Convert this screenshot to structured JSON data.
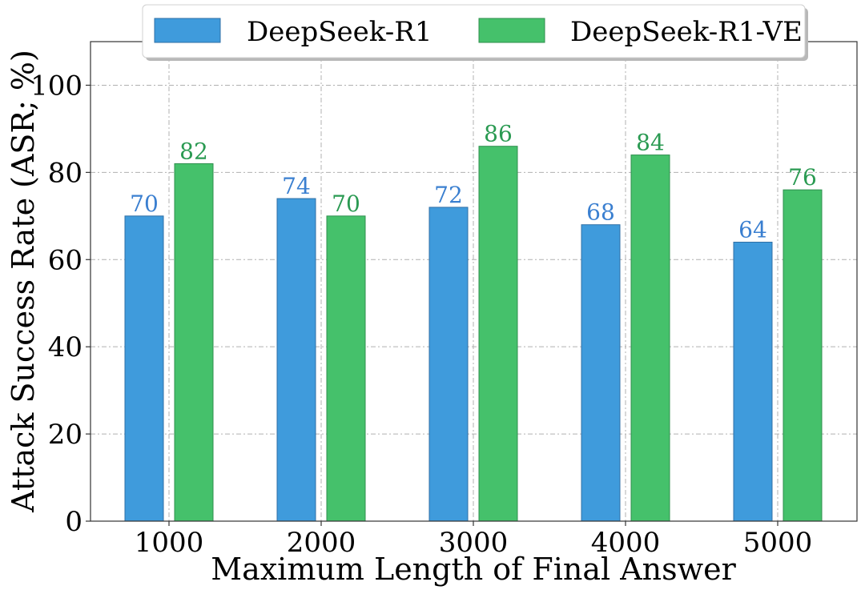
{
  "chart_data": {
    "type": "bar",
    "title": "",
    "xlabel": "Maximum Length of Final Answer",
    "ylabel": "Attack Success Rate (ASR; %)",
    "categories": [
      "1000",
      "2000",
      "3000",
      "4000",
      "5000"
    ],
    "series": [
      {
        "name": "DeepSeek-R1",
        "values": [
          70,
          74,
          72,
          68,
          64
        ],
        "color": "#3f9bdc",
        "label_color": "#3a7fd0"
      },
      {
        "name": "DeepSeek-R1-VE",
        "values": [
          82,
          70,
          86,
          84,
          76
        ],
        "color": "#45c16b",
        "label_color": "#2a9a52"
      }
    ],
    "ylim": [
      0,
      110
    ],
    "yticks": [
      "0",
      "20",
      "40",
      "60",
      "80",
      "100"
    ],
    "grid": true,
    "legend_position": "top-center"
  }
}
